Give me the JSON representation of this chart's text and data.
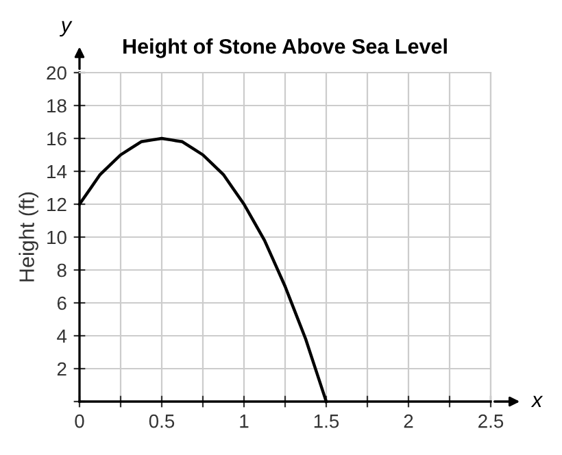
{
  "chart_data": {
    "type": "line",
    "title": "Height of Stone Above Sea Level",
    "xlabel": "x",
    "ylabel": "Height (ft)",
    "annotations": [
      "y"
    ],
    "x": [
      0,
      0.0625,
      0.125,
      0.1875,
      0.25,
      0.3125,
      0.375,
      0.4375,
      0.5,
      0.5625,
      0.625,
      0.6875,
      0.75,
      0.8125,
      0.875,
      0.9375,
      1,
      1.0625,
      1.125,
      1.1875,
      1.25,
      1.3125,
      1.375,
      1.4375,
      1.5
    ],
    "series": [
      {
        "color": "#000000",
        "values": [
          12,
          12.9,
          13.8,
          14.4,
          15,
          15.4,
          15.8,
          15.9,
          16,
          15.9,
          15.8,
          15.4,
          15,
          14.4,
          13.8,
          12.9,
          12,
          10.9,
          9.8,
          8.4,
          7,
          5.4,
          3.8,
          1.9,
          0
        ]
      }
    ],
    "xlim": [
      0,
      2.5
    ],
    "ylim": [
      0,
      20
    ],
    "xticks": [
      0,
      {
        "value": 0.25,
        "label": null
      },
      0.5,
      {
        "value": 0.75,
        "label": null
      },
      1,
      {
        "value": 1.25,
        "label": null
      },
      1.5,
      {
        "value": 1.75,
        "label": null
      },
      2,
      {
        "value": 2.25,
        "label": null
      },
      2.5
    ],
    "yticks": [
      {
        "value": 0,
        "label": null
      },
      2,
      4,
      6,
      8,
      10,
      12,
      14,
      16,
      18,
      20
    ],
    "grid": true,
    "marker": "none",
    "line_style": "solid"
  }
}
